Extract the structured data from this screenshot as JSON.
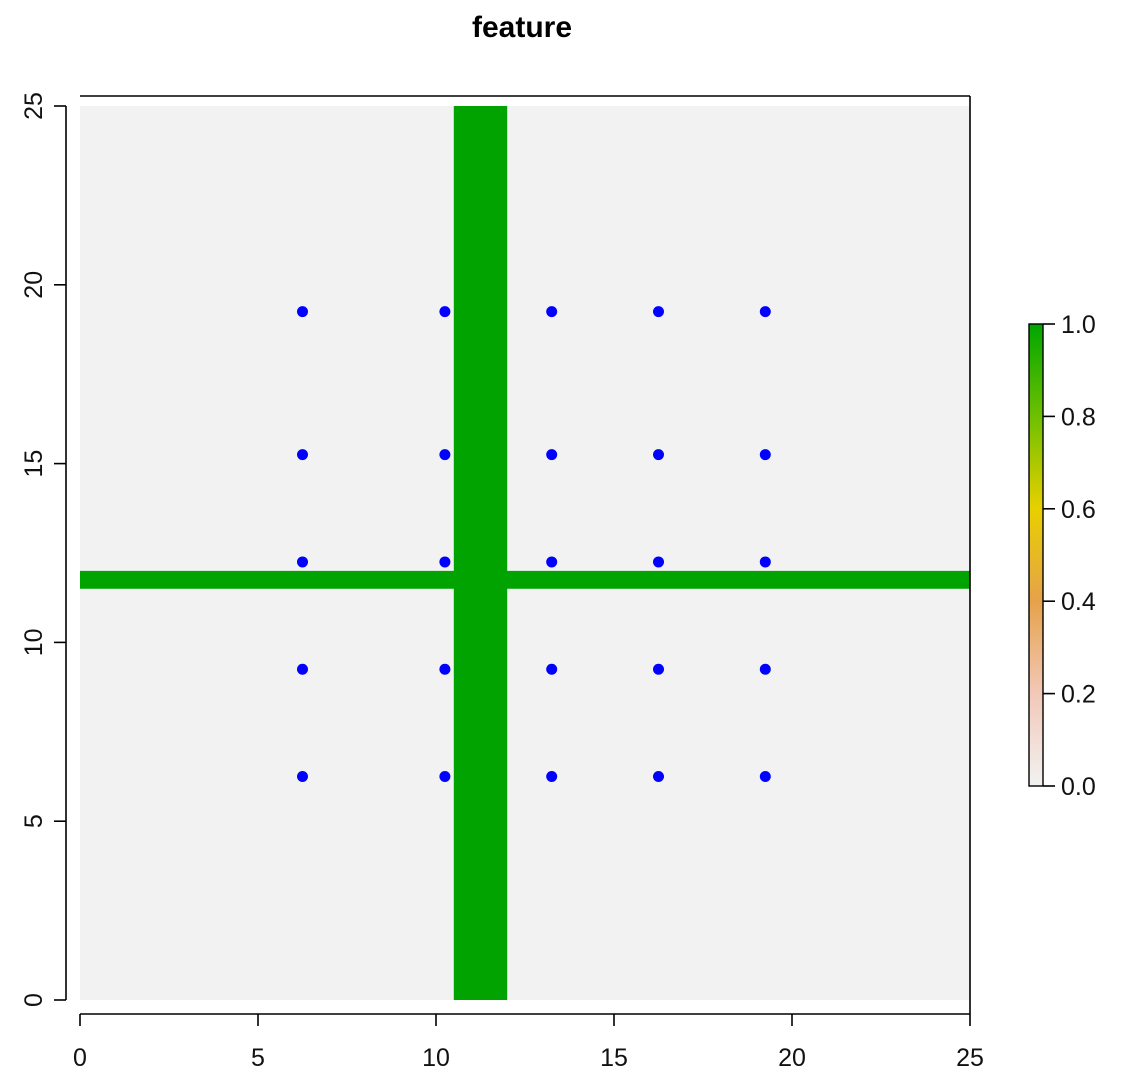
{
  "chart_data": {
    "type": "heatmap",
    "title": "feature",
    "xlabel": "",
    "ylabel": "",
    "xlim": [
      0,
      25
    ],
    "ylim": [
      0,
      25
    ],
    "x_ticks": [
      0,
      5,
      10,
      15,
      20,
      25
    ],
    "y_ticks": [
      0,
      5,
      10,
      15,
      20,
      25
    ],
    "x_tick_labels": [
      "0",
      "5",
      "10",
      "15",
      "20",
      "25"
    ],
    "y_tick_labels": [
      "0",
      "5",
      "10",
      "15",
      "20",
      "25"
    ],
    "raster": {
      "background_value": 0.0,
      "features": [
        {
          "value": 1.0,
          "x_range": [
            10.5,
            12.0
          ],
          "y_range": [
            0,
            25
          ]
        },
        {
          "value": 1.0,
          "x_range": [
            0,
            25
          ],
          "y_range": [
            11.5,
            12.0
          ]
        }
      ]
    },
    "points": {
      "color": "#0000ff",
      "x": [
        6.25,
        10.25,
        13.25,
        16.25,
        19.25
      ],
      "y": [
        6.25,
        9.25,
        12.25,
        15.25,
        19.25
      ]
    },
    "colorbar": {
      "range": [
        0.0,
        1.0
      ],
      "ticks": [
        "0.0",
        "0.2",
        "0.4",
        "0.6",
        "0.8",
        "1.0"
      ],
      "gradient": [
        "#f2f2f2",
        "#f2c8b8",
        "#e6a24a",
        "#e8d000",
        "#6ec000",
        "#00a600"
      ],
      "placement": "right"
    },
    "colors": {
      "background": "#f2f2f2",
      "feature": "#00a300",
      "points": "#0000ff"
    }
  }
}
